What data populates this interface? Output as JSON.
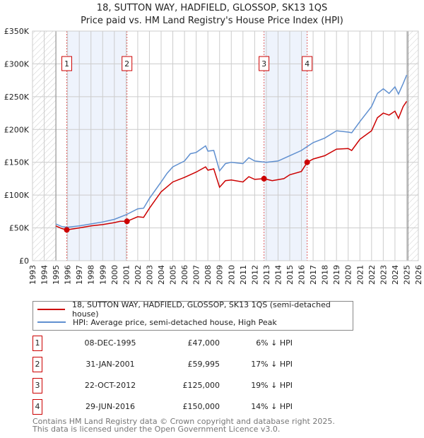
{
  "title": "18, SUTTON WAY, HADFIELD, GLOSSOP, SK13 1QS",
  "subtitle": "Price paid vs. HM Land Registry's House Price Index (HPI)",
  "chart_data": {
    "type": "line",
    "xlim": [
      1993,
      2026
    ],
    "ylim": [
      0,
      350000
    ],
    "yticks": [
      0,
      50000,
      100000,
      150000,
      200000,
      250000,
      300000,
      350000
    ],
    "ytick_labels": [
      "£0",
      "£50K",
      "£100K",
      "£150K",
      "£200K",
      "£250K",
      "£300K",
      "£350K"
    ],
    "xticks": [
      1993,
      1994,
      1995,
      1996,
      1997,
      1998,
      1999,
      2000,
      2001,
      2002,
      2003,
      2004,
      2005,
      2006,
      2007,
      2008,
      2009,
      2010,
      2011,
      2012,
      2013,
      2014,
      2015,
      2016,
      2017,
      2018,
      2019,
      2020,
      2021,
      2022,
      2023,
      2024,
      2025,
      2026
    ],
    "hatched_ranges": [
      [
        1993,
        1995
      ],
      [
        2025.1,
        2026
      ]
    ],
    "shaded_ranges": [
      [
        1995.93,
        2001.08
      ],
      [
        2012.8,
        2016.5
      ]
    ],
    "colors": {
      "price": "#cc0000",
      "hpi": "#6090d0",
      "shade": "#eef3fc"
    },
    "series": [
      {
        "name": "18, SUTTON WAY, HADFIELD, GLOSSOP, SK13 1QS (semi-detached house)",
        "key": "price",
        "x": [
          1995.0,
          1995.5,
          1995.93,
          1997,
          1998,
          1999,
          2000,
          2000.5,
          2001.08,
          2002,
          2002.5,
          2003,
          2004,
          2005,
          2006,
          2007,
          2007.8,
          2008,
          2008.5,
          2009,
          2009.5,
          2010,
          2011,
          2011.5,
          2012,
          2012.8,
          2013.5,
          2014.5,
          2015,
          2016,
          2016.5,
          2017,
          2018,
          2019,
          2020,
          2020.3,
          2021,
          2022,
          2022.5,
          2023,
          2023.5,
          2024,
          2024.3,
          2024.7,
          2025
        ],
        "y": [
          53000,
          49000,
          47000,
          50000,
          53000,
          55000,
          58000,
          60000,
          60000,
          67000,
          66000,
          80000,
          105000,
          120000,
          127000,
          135000,
          143000,
          138000,
          140000,
          112000,
          122000,
          123000,
          120000,
          128000,
          124000,
          125000,
          122000,
          125000,
          131000,
          136000,
          150000,
          155000,
          160000,
          170000,
          171000,
          168000,
          185000,
          198000,
          218000,
          225000,
          222000,
          228000,
          217000,
          235000,
          243000
        ]
      },
      {
        "name": "HPI: Average price, semi-detached house, High Peak",
        "key": "hpi",
        "x": [
          1995.0,
          1995.5,
          1996,
          1997,
          1998,
          1999,
          2000,
          2001,
          2002,
          2002.5,
          2003,
          2004,
          2004.5,
          2005,
          2006,
          2006.5,
          2007,
          2007.8,
          2008,
          2008.5,
          2009,
          2009.5,
          2010,
          2011,
          2011.5,
          2012,
          2013,
          2014,
          2015,
          2016,
          2016.5,
          2017,
          2018,
          2019,
          2020,
          2020.3,
          2021,
          2022,
          2022.5,
          2023,
          2023.5,
          2024,
          2024.3,
          2024.7,
          2025
        ],
        "y": [
          56000,
          52000,
          51000,
          53000,
          56000,
          59000,
          63000,
          70000,
          79000,
          80000,
          95000,
          120000,
          133000,
          143000,
          152000,
          163000,
          165000,
          175000,
          167000,
          168000,
          137000,
          148000,
          150000,
          148000,
          157000,
          152000,
          150000,
          152000,
          160000,
          168000,
          174000,
          180000,
          187000,
          198000,
          196000,
          195000,
          212000,
          235000,
          255000,
          262000,
          255000,
          265000,
          254000,
          270000,
          283000
        ]
      }
    ],
    "sales": [
      {
        "n": "1",
        "x": 1995.93,
        "y": 47000
      },
      {
        "n": "2",
        "x": 2001.08,
        "y": 59995
      },
      {
        "n": "3",
        "x": 2012.8,
        "y": 125000
      },
      {
        "n": "4",
        "x": 2016.49,
        "y": 150000
      }
    ]
  },
  "legend": {
    "price": "18, SUTTON WAY, HADFIELD, GLOSSOP, SK13 1QS (semi-detached house)",
    "hpi": "HPI: Average price, semi-detached house, High Peak"
  },
  "table": [
    {
      "n": "1",
      "date": "08-DEC-1995",
      "price": "£47,000",
      "pct": "6% ↓ HPI"
    },
    {
      "n": "2",
      "date": "31-JAN-2001",
      "price": "£59,995",
      "pct": "17% ↓ HPI"
    },
    {
      "n": "3",
      "date": "22-OCT-2012",
      "price": "£125,000",
      "pct": "19% ↓ HPI"
    },
    {
      "n": "4",
      "date": "29-JUN-2016",
      "price": "£150,000",
      "pct": "14% ↓ HPI"
    }
  ],
  "footer": [
    "Contains HM Land Registry data © Crown copyright and database right 2025.",
    "This data is licensed under the Open Government Licence v3.0."
  ]
}
